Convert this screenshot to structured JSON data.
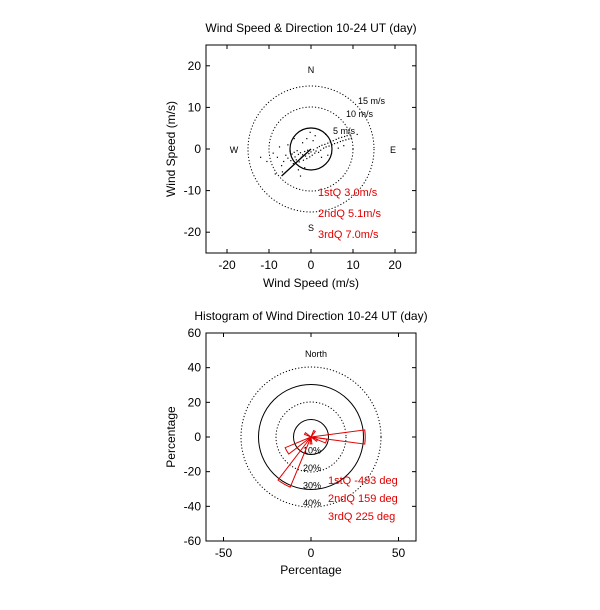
{
  "chart_data": [
    {
      "type": "scatter",
      "subtype": "polar-wind-scatter",
      "title": "Wind Speed & Direction 10-24 UT (day)",
      "xlabel": "Wind Speed (m/s)",
      "ylabel": "Wind Speed (m/s)",
      "xlim": [
        -25,
        25
      ],
      "ylim": [
        -25,
        25
      ],
      "xticks": [
        -20,
        -10,
        0,
        10,
        20
      ],
      "yticks": [
        20,
        10,
        0,
        -10,
        -20
      ],
      "rings": [
        {
          "value": 5,
          "label": "5 m/s"
        },
        {
          "value": 10,
          "label": "10 m/s"
        },
        {
          "value": 15,
          "label": "15 m/s"
        }
      ],
      "compass": {
        "n": "N",
        "s": "S",
        "e": "E",
        "w": "W"
      },
      "quartiles": [
        "1stQ 3.0m/s",
        "2ndQ 5.1m/s",
        "3rdQ 7.0m/s"
      ],
      "mean_vector": {
        "u": -7,
        "v": -6.5
      },
      "points": [
        [
          -6.5,
          -3
        ],
        [
          -6,
          -1.5
        ],
        [
          -5.5,
          -2.2
        ],
        [
          -5,
          -0.5
        ],
        [
          -4.8,
          -2.8
        ],
        [
          -4.5,
          -1.2
        ],
        [
          -4.2,
          -3.5
        ],
        [
          -4,
          -0.8
        ],
        [
          -3.8,
          -1.9
        ],
        [
          -3.5,
          -2.6
        ],
        [
          -3.3,
          -0.4
        ],
        [
          -3,
          -1.3
        ],
        [
          -2.8,
          -3.1
        ],
        [
          -2.5,
          -0.9
        ],
        [
          -2.3,
          -2
        ],
        [
          -2,
          -1.4
        ],
        [
          -1.8,
          -2.7
        ],
        [
          -1.5,
          -0.6
        ],
        [
          -1.3,
          -1.7
        ],
        [
          -1,
          -2.3
        ],
        [
          -0.8,
          -0.3
        ],
        [
          -0.5,
          -1.1
        ],
        [
          -0.3,
          -1.9
        ],
        [
          0,
          -0.7
        ],
        [
          0.3,
          -1.5
        ],
        [
          0.6,
          -0.2
        ],
        [
          0.9,
          -1
        ],
        [
          1.2,
          -0.5
        ],
        [
          1.5,
          0.3
        ],
        [
          1.8,
          -0.8
        ],
        [
          2,
          0.6
        ],
        [
          2.3,
          -0.3
        ],
        [
          2.6,
          0.9
        ],
        [
          3,
          0.2
        ],
        [
          3.3,
          1.1
        ],
        [
          3.6,
          0.5
        ],
        [
          4,
          1.4
        ],
        [
          4.3,
          0.7
        ],
        [
          4.6,
          1.7
        ],
        [
          5,
          1
        ],
        [
          5.3,
          2
        ],
        [
          5.6,
          1.3
        ],
        [
          6,
          2.3
        ],
        [
          6.3,
          1.5
        ],
        [
          6.6,
          2.6
        ],
        [
          7,
          1.8
        ],
        [
          7.3,
          2.8
        ],
        [
          7.6,
          2
        ],
        [
          8,
          3
        ],
        [
          8.3,
          2.2
        ],
        [
          8.6,
          3.2
        ],
        [
          9,
          2.4
        ],
        [
          9.3,
          3.4
        ],
        [
          9.6,
          2.6
        ],
        [
          -8,
          -2
        ],
        [
          -7.5,
          0.5
        ],
        [
          -7,
          -4
        ],
        [
          -9,
          -1
        ],
        [
          -2,
          1.5
        ],
        [
          -1,
          2.5
        ],
        [
          0.5,
          2
        ],
        [
          1,
          3.2
        ],
        [
          -3,
          -5
        ],
        [
          -1.5,
          -4.5
        ],
        [
          2.5,
          -2
        ],
        [
          4,
          -1.5
        ],
        [
          -5.5,
          1
        ],
        [
          -6.8,
          -5.5
        ],
        [
          3.5,
          3.5
        ],
        [
          -0.2,
          4
        ],
        [
          6.5,
          0.2
        ],
        [
          7.8,
          0.8
        ],
        [
          -4,
          2.5
        ],
        [
          -10.5,
          -3
        ],
        [
          -12,
          -2
        ],
        [
          11,
          3.5
        ],
        [
          -8.5,
          -6
        ],
        [
          -2.5,
          -6.5
        ]
      ]
    },
    {
      "type": "polar-histogram",
      "title": "Histogram of Wind Direction 10-24 UT (day)",
      "xlabel": "Percentage",
      "ylabel": "Percentage",
      "xlim": [
        -60,
        60
      ],
      "ylim": [
        -60,
        60
      ],
      "xticks": [
        -50,
        0,
        50
      ],
      "yticks": [
        60,
        40,
        20,
        0,
        -20,
        -40,
        -60
      ],
      "rings": [
        {
          "value": 10,
          "label": "10%"
        },
        {
          "value": 20,
          "label": "20%"
        },
        {
          "value": 30,
          "label": "30%"
        },
        {
          "value": 40,
          "label": "40%"
        }
      ],
      "north_label": "North",
      "quartiles": [
        "1stQ -493 deg",
        "2ndQ 159 deg",
        "3rdQ 225 deg"
      ],
      "sectors": [
        {
          "direction_deg": 90,
          "percent": 31
        },
        {
          "direction_deg": 105,
          "percent": 9
        },
        {
          "direction_deg": 120,
          "percent": 4
        },
        {
          "direction_deg": 180,
          "percent": 4
        },
        {
          "direction_deg": 210,
          "percent": 31
        },
        {
          "direction_deg": 240,
          "percent": 16
        },
        {
          "direction_deg": 300,
          "percent": 4
        },
        {
          "direction_deg": 30,
          "percent": 4
        }
      ]
    }
  ]
}
